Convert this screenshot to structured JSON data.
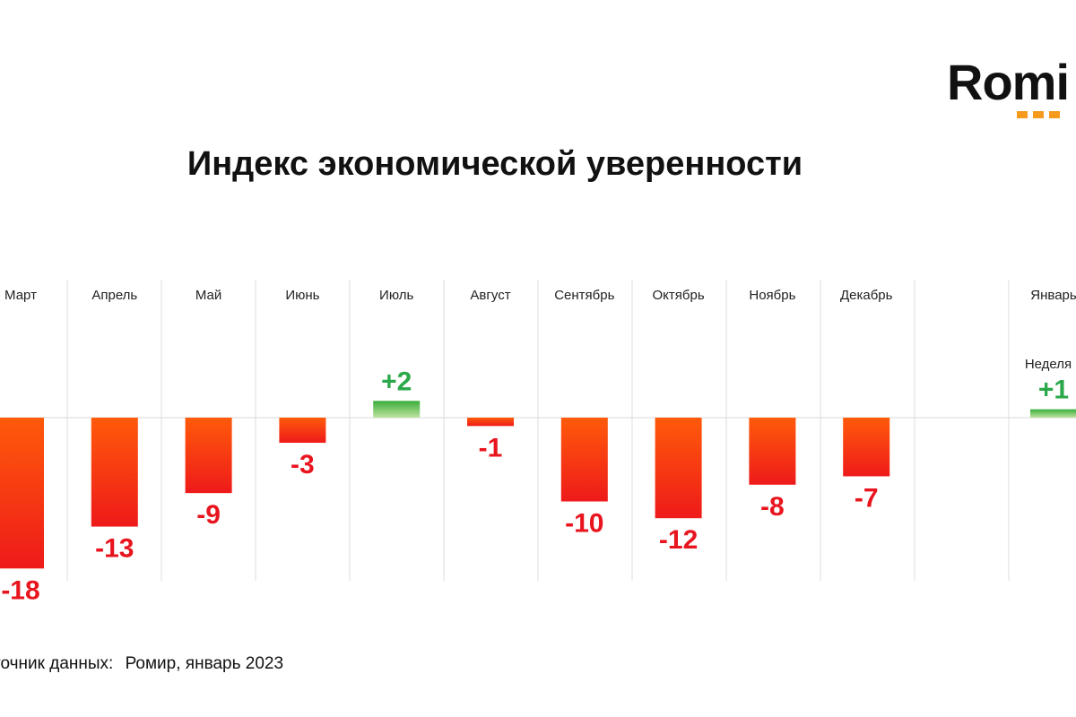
{
  "logo": {
    "text": "Romi",
    "dot_color": "#f59a1c"
  },
  "footer": {
    "source_label": "точник данных:",
    "source_value": "Ромир, январь 2023"
  },
  "chart_data": {
    "type": "bar",
    "title": "Индекс экономической уверенности",
    "categories": [
      "Март",
      "Апрель",
      "Май",
      "Июнь",
      "Июль",
      "Август",
      "Сентябрь",
      "Октябрь",
      "Ноябрь",
      "Декабрь",
      "Январь"
    ],
    "sub_labels": {
      "Январь": "Неделя"
    },
    "values": [
      -18,
      -13,
      -9,
      -3,
      2,
      -1,
      -10,
      -12,
      -8,
      -7,
      1
    ],
    "value_labels": [
      "-18",
      "-13",
      "-9",
      "-3",
      "+2",
      "-1",
      "-10",
      "-12",
      "-8",
      "-7",
      "+1"
    ],
    "positive_color": "#3aae3a",
    "negative_color_top": "#ff5a0a",
    "negative_color_bottom": "#ee1a1a",
    "positive_label_color": "#2aa84a",
    "negative_label_color": "#e8141e",
    "grid": true,
    "legend": "none"
  }
}
